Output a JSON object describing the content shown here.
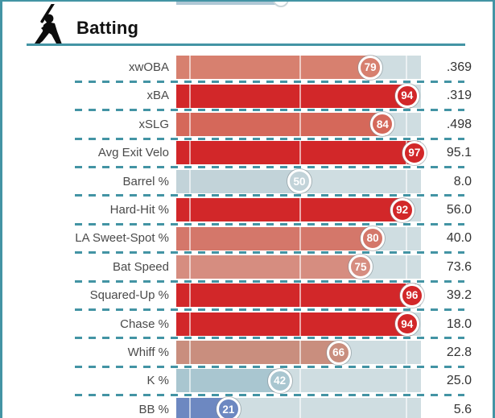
{
  "header": {
    "title": "Batting",
    "icon": "batter-swinging-icon"
  },
  "colors": {
    "accent_teal": "#4394a4",
    "track": "#cfdde1",
    "remnant_bar": "#afc7d5",
    "label_text": "#4a4a4a",
    "value_text": "#333333",
    "badge_text": "#ffffff"
  },
  "chart_data": {
    "type": "bar",
    "title": "Batting",
    "orientation": "horizontal",
    "xlim": [
      0,
      100
    ],
    "grid": "white gridlines at ~5%, 50%, 94% of track",
    "legend_position": "none",
    "categories": [
      "xwOBA",
      "xBA",
      "xSLG",
      "Avg Exit Velo",
      "Barrel %",
      "Hard-Hit %",
      "LA Sweet-Spot %",
      "Bat Speed",
      "Squared-Up %",
      "Chase %",
      "Whiff %",
      "K %",
      "BB %"
    ],
    "series": [
      {
        "name": "percentile",
        "values": [
          79,
          94,
          84,
          97,
          50,
          92,
          80,
          75,
          96,
          94,
          66,
          42,
          21
        ]
      },
      {
        "name": "stat_value",
        "values": [
          ".369",
          ".319",
          ".498",
          "95.1",
          "8.0",
          "56.0",
          "40.0",
          "73.6",
          "39.2",
          "18.0",
          "22.8",
          "25.0",
          "5.6"
        ]
      }
    ],
    "rows": [
      {
        "label": "xwOBA",
        "percentile": 79,
        "value": ".369",
        "color": "#d7806f"
      },
      {
        "label": "xBA",
        "percentile": 94,
        "value": ".319",
        "color": "#d22729"
      },
      {
        "label": "xSLG",
        "percentile": 84,
        "value": ".498",
        "color": "#d5685a"
      },
      {
        "label": "Avg Exit Velo",
        "percentile": 97,
        "value": "95.1",
        "color": "#d22729"
      },
      {
        "label": "Barrel %",
        "percentile": 50,
        "value": "8.0",
        "color": "#c2d3d9"
      },
      {
        "label": "Hard-Hit %",
        "percentile": 92,
        "value": "56.0",
        "color": "#d22729"
      },
      {
        "label": "LA Sweet-Spot %",
        "percentile": 80,
        "value": "40.0",
        "color": "#d4776a"
      },
      {
        "label": "Bat Speed",
        "percentile": 75,
        "value": "73.6",
        "color": "#d68d80"
      },
      {
        "label": "Squared-Up %",
        "percentile": 96,
        "value": "39.2",
        "color": "#d22729"
      },
      {
        "label": "Chase %",
        "percentile": 94,
        "value": "18.0",
        "color": "#d22729"
      },
      {
        "label": "Whiff %",
        "percentile": 66,
        "value": "22.8",
        "color": "#c98e7e"
      },
      {
        "label": "K %",
        "percentile": 42,
        "value": "25.0",
        "color": "#a9c6d0"
      },
      {
        "label": "BB %",
        "percentile": 21,
        "value": "5.6",
        "color": "#6d88c1"
      }
    ]
  }
}
